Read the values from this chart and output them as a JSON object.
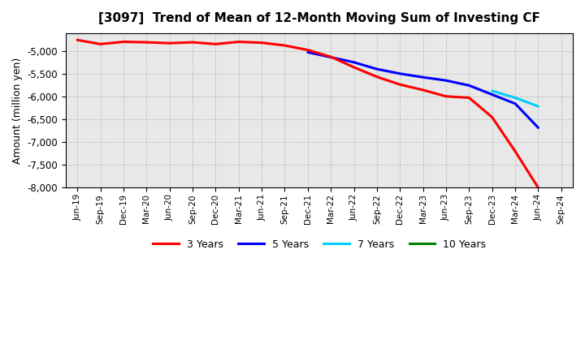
{
  "title": "[3097]  Trend of Mean of 12-Month Moving Sum of Investing CF",
  "ylabel": "Amount (million yen)",
  "ylim": [
    -8000,
    -4600
  ],
  "yticks": [
    -8000,
    -7500,
    -7000,
    -6500,
    -6000,
    -5500,
    -5000
  ],
  "background_color": "#ffffff",
  "plot_background": "#e8e8e8",
  "series": {
    "3yr": {
      "label": "3 Years",
      "color": "#ff0000",
      "x": [
        "Jun-19",
        "Sep-19",
        "Dec-19",
        "Mar-20",
        "Jun-20",
        "Sep-20",
        "Dec-20",
        "Mar-21",
        "Jun-21",
        "Sep-21",
        "Dec-21",
        "Mar-22",
        "Jun-22",
        "Sep-22",
        "Dec-22",
        "Mar-23",
        "Jun-23",
        "Sep-23",
        "Dec-23",
        "Mar-24",
        "Jun-24"
      ],
      "y": [
        -4750,
        -4840,
        -4790,
        -4800,
        -4820,
        -4800,
        -4840,
        -4790,
        -4810,
        -4870,
        -4970,
        -5120,
        -5350,
        -5560,
        -5730,
        -5850,
        -5990,
        -6020,
        -6450,
        -7200,
        -8000
      ]
    },
    "5yr": {
      "label": "5 Years",
      "color": "#0000ff",
      "x": [
        "Dec-21",
        "Mar-22",
        "Jun-22",
        "Sep-22",
        "Dec-22",
        "Mar-23",
        "Jun-23",
        "Sep-23",
        "Dec-23",
        "Mar-24",
        "Jun-24"
      ],
      "y": [
        -5020,
        -5130,
        -5240,
        -5390,
        -5490,
        -5570,
        -5640,
        -5750,
        -5950,
        -6150,
        -6680
      ]
    },
    "7yr": {
      "label": "7 Years",
      "color": "#00ccff",
      "x": [
        "Dec-23",
        "Mar-24",
        "Jun-24"
      ],
      "y": [
        -5870,
        -6020,
        -6210
      ]
    },
    "10yr": {
      "label": "10 Years",
      "color": "#008000",
      "x": [],
      "y": []
    }
  },
  "xtick_labels": [
    "Jun-19",
    "Sep-19",
    "Dec-19",
    "Mar-20",
    "Jun-20",
    "Sep-20",
    "Dec-20",
    "Mar-21",
    "Jun-21",
    "Sep-21",
    "Dec-21",
    "Mar-22",
    "Jun-22",
    "Sep-22",
    "Dec-22",
    "Mar-23",
    "Jun-23",
    "Sep-23",
    "Dec-23",
    "Mar-24",
    "Jun-24",
    "Sep-24"
  ],
  "legend_colors": [
    "#ff0000",
    "#0000ff",
    "#00ccff",
    "#008000"
  ],
  "legend_labels": [
    "3 Years",
    "5 Years",
    "7 Years",
    "10 Years"
  ]
}
